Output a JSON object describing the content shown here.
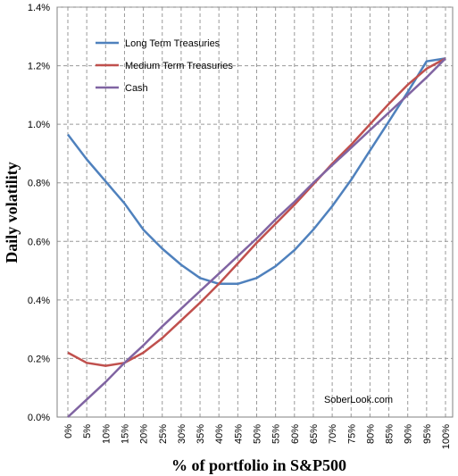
{
  "chart_data": {
    "type": "line",
    "xlabel": "% of portfolio in S&P500",
    "ylabel": "Daily volatility",
    "categories": [
      "0%",
      "5%",
      "10%",
      "15%",
      "20%",
      "25%",
      "30%",
      "35%",
      "40%",
      "45%",
      "50%",
      "55%",
      "60%",
      "65%",
      "70%",
      "75%",
      "80%",
      "85%",
      "90%",
      "95%",
      "100%"
    ],
    "x": [
      0,
      5,
      10,
      15,
      20,
      25,
      30,
      35,
      40,
      45,
      50,
      55,
      60,
      65,
      70,
      75,
      80,
      85,
      90,
      95,
      100
    ],
    "ylim": [
      0,
      1.4
    ],
    "yticks": [
      "0.0%",
      "0.2%",
      "0.4%",
      "0.6%",
      "0.8%",
      "1.0%",
      "1.2%",
      "1.4%"
    ],
    "ytick_values": [
      0,
      0.2,
      0.4,
      0.6,
      0.8,
      1.0,
      1.2,
      1.4
    ],
    "grid": "dashed vertical and horizontal",
    "legend_position": "top-left",
    "annotation": "SoberLook.com",
    "series": [
      {
        "name": "Long Term Treasuries",
        "color": "#4F81BD",
        "values": [
          0.965,
          0.88,
          0.805,
          0.73,
          0.64,
          0.575,
          0.52,
          0.475,
          0.455,
          0.455,
          0.475,
          0.515,
          0.57,
          0.64,
          0.72,
          0.81,
          0.91,
          1.01,
          1.11,
          1.215,
          1.225
        ]
      },
      {
        "name": "Medium Term Treasuries",
        "color": "#C0504D",
        "values": [
          0.22,
          0.185,
          0.175,
          0.185,
          0.22,
          0.27,
          0.33,
          0.39,
          0.455,
          0.525,
          0.595,
          0.66,
          0.725,
          0.795,
          0.865,
          0.93,
          1.0,
          1.07,
          1.135,
          1.19,
          1.225
        ]
      },
      {
        "name": "Cash",
        "color": "#8064A2",
        "values": [
          0.0,
          0.06,
          0.12,
          0.185,
          0.245,
          0.31,
          0.37,
          0.43,
          0.49,
          0.55,
          0.61,
          0.675,
          0.735,
          0.8,
          0.86,
          0.92,
          0.98,
          1.04,
          1.1,
          1.16,
          1.225
        ]
      }
    ]
  }
}
